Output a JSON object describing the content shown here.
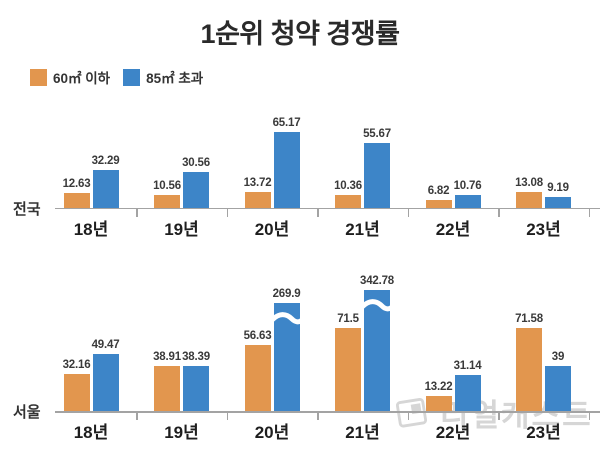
{
  "title": "1순위 청약 경쟁률",
  "legend": {
    "items": [
      {
        "label": "60㎡ 이하",
        "color": "#E2964E"
      },
      {
        "label": "85㎡ 초과",
        "color": "#3D85C8"
      }
    ]
  },
  "watermark": {
    "text": "리얼캐스트"
  },
  "chart_data": [
    {
      "type": "bar",
      "group_label": "전국",
      "categories": [
        "18년",
        "19년",
        "20년",
        "21년",
        "22년",
        "23년"
      ],
      "series": [
        {
          "name": "60㎡ 이하",
          "color": "#E2964E",
          "values": [
            12.63,
            10.56,
            13.72,
            10.36,
            6.82,
            13.08
          ]
        },
        {
          "name": "85㎡ 초과",
          "color": "#3D85C8",
          "values": [
            32.29,
            30.56,
            65.17,
            55.67,
            10.76,
            9.19
          ]
        }
      ],
      "value_labels": true,
      "grid": false,
      "legend_position": "top-left",
      "axis_breaks": []
    },
    {
      "type": "bar",
      "group_label": "서울",
      "categories": [
        "18년",
        "19년",
        "20년",
        "21년",
        "22년",
        "23년"
      ],
      "series": [
        {
          "name": "60㎡ 이하",
          "color": "#E2964E",
          "values": [
            32.16,
            38.91,
            56.63,
            71.5,
            13.22,
            71.58
          ]
        },
        {
          "name": "85㎡ 초과",
          "color": "#3D85C8",
          "values": [
            49.47,
            38.39,
            269.9,
            342.78,
            31.14,
            39
          ]
        }
      ],
      "value_labels": true,
      "grid": false,
      "axis_breaks": [
        {
          "series": "85㎡ 초과",
          "category": "20년",
          "value": 269.9
        },
        {
          "series": "85㎡ 초과",
          "category": "21년",
          "value": 342.78
        }
      ]
    }
  ]
}
